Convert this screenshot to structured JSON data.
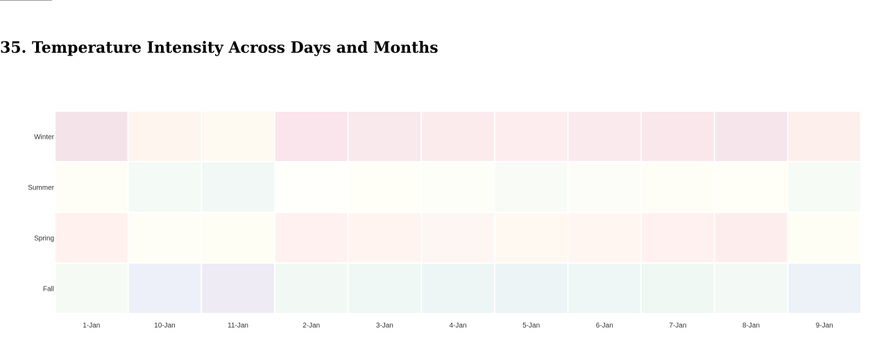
{
  "page": {
    "title": "35. Temperature Intensity Across Days and Months"
  },
  "chart_data": {
    "type": "heatmap",
    "title": "35. Temperature Intensity Across Days and Months",
    "x_categories": [
      "1-Jan",
      "10-Jan",
      "11-Jan",
      "2-Jan",
      "3-Jan",
      "4-Jan",
      "5-Jan",
      "6-Jan",
      "7-Jan",
      "8-Jan",
      "9-Jan"
    ],
    "y_categories": [
      "Winter",
      "Summer",
      "Spring",
      "Fall"
    ],
    "values": [
      [
        "#f4e4ea",
        "#fef5ef",
        "#fef9f1",
        "#f9e5eb",
        "#f9e8ec",
        "#fbebec",
        "#fdedee",
        "#fbeaed",
        "#f9e7eb",
        "#f6e6eb",
        "#fdf0ec"
      ],
      [
        "#fffef6",
        "#f4faf6",
        "#f1f8f5",
        "#fffffb",
        "#fffff8",
        "#fdfef8",
        "#f8fbf6",
        "#fcfdf8",
        "#fefef7",
        "#fffff8",
        "#f6fbf6"
      ],
      [
        "#fff1ed",
        "#fffef6",
        "#fffef4",
        "#fff1ef",
        "#fff4f0",
        "#fef6f2",
        "#fff9f2",
        "#fff6f2",
        "#fff1ef",
        "#fdeeed",
        "#fffef5"
      ],
      [
        "#f5fbf4",
        "#edf0f8",
        "#eeebf5",
        "#f2f9f5",
        "#f0f8f5",
        "#eef6f5",
        "#edf4f6",
        "#eef7f5",
        "#f0f8f4",
        "#f3f9f5",
        "#ecf2f8"
      ]
    ],
    "color_scale": "sequential diverging",
    "grid": false,
    "legend": "none"
  }
}
